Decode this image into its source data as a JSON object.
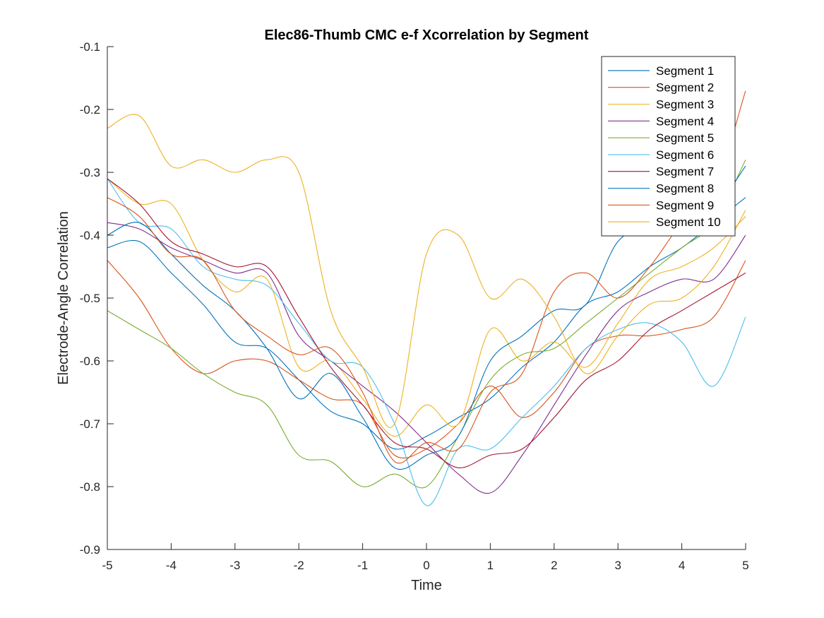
{
  "chart_data": {
    "type": "line",
    "title": "Elec86-Thumb CMC e-f Xcorrelation by Segment",
    "xlabel": "Time",
    "ylabel": "Electrode-Angle Correlation",
    "xlim": [
      -5,
      5
    ],
    "ylim": [
      -0.9,
      -0.1
    ],
    "xticks": [
      -5,
      -4,
      -3,
      -2,
      -1,
      0,
      1,
      2,
      3,
      4,
      5
    ],
    "xtick_labels": [
      "-5",
      "-4",
      "-3",
      "-2",
      "-1",
      "0",
      "1",
      "2",
      "3",
      "4",
      "5"
    ],
    "yticks": [
      -0.9,
      -0.8,
      -0.7,
      -0.6,
      -0.5,
      -0.4,
      -0.3,
      -0.2,
      -0.1
    ],
    "ytick_labels": [
      "-0.9",
      "-0.8",
      "-0.7",
      "-0.6",
      "-0.5",
      "-0.4",
      "-0.3",
      "-0.2",
      "-0.1"
    ],
    "grid": false,
    "legend_position": "top-right",
    "x": [
      -5,
      -4.5,
      -4,
      -3.5,
      -3,
      -2.5,
      -2,
      -1.5,
      -1,
      -0.5,
      0,
      0.5,
      1,
      1.5,
      2,
      2.5,
      3,
      3.5,
      4,
      4.5,
      5
    ],
    "series": [
      {
        "name": "Segment 1",
        "color": "#0072BD",
        "values": [
          -0.42,
          -0.41,
          -0.46,
          -0.51,
          -0.57,
          -0.58,
          -0.63,
          -0.68,
          -0.7,
          -0.74,
          -0.72,
          -0.69,
          -0.66,
          -0.61,
          -0.57,
          -0.51,
          -0.49,
          -0.45,
          -0.42,
          -0.38,
          -0.34
        ]
      },
      {
        "name": "Segment 2",
        "color": "#D95319",
        "values": [
          -0.44,
          -0.5,
          -0.58,
          -0.62,
          -0.6,
          -0.6,
          -0.63,
          -0.66,
          -0.67,
          -0.75,
          -0.74,
          -0.7,
          -0.64,
          -0.69,
          -0.65,
          -0.58,
          -0.56,
          -0.56,
          -0.55,
          -0.53,
          -0.44
        ]
      },
      {
        "name": "Segment 3",
        "color": "#EDB120",
        "values": [
          -0.31,
          -0.35,
          -0.35,
          -0.44,
          -0.49,
          -0.47,
          -0.61,
          -0.6,
          -0.66,
          -0.72,
          -0.67,
          -0.7,
          -0.55,
          -0.6,
          -0.57,
          -0.61,
          -0.54,
          -0.47,
          -0.45,
          -0.42,
          -0.37
        ]
      },
      {
        "name": "Segment 4",
        "color": "#7E2F8E",
        "values": [
          -0.38,
          -0.39,
          -0.42,
          -0.44,
          -0.46,
          -0.46,
          -0.56,
          -0.6,
          -0.64,
          -0.68,
          -0.73,
          -0.78,
          -0.81,
          -0.75,
          -0.67,
          -0.59,
          -0.52,
          -0.49,
          -0.47,
          -0.47,
          -0.4
        ]
      },
      {
        "name": "Segment 5",
        "color": "#77AC30",
        "values": [
          -0.52,
          -0.55,
          -0.58,
          -0.62,
          -0.65,
          -0.67,
          -0.75,
          -0.76,
          -0.8,
          -0.78,
          -0.8,
          -0.72,
          -0.63,
          -0.59,
          -0.58,
          -0.54,
          -0.5,
          -0.46,
          -0.42,
          -0.38,
          -0.28
        ]
      },
      {
        "name": "Segment 6",
        "color": "#4DBEEE",
        "values": [
          -0.31,
          -0.38,
          -0.39,
          -0.45,
          -0.47,
          -0.48,
          -0.54,
          -0.6,
          -0.61,
          -0.7,
          -0.83,
          -0.74,
          -0.74,
          -0.69,
          -0.64,
          -0.58,
          -0.55,
          -0.54,
          -0.57,
          -0.64,
          -0.53
        ]
      },
      {
        "name": "Segment 7",
        "color": "#A2142F",
        "values": [
          -0.31,
          -0.35,
          -0.41,
          -0.43,
          -0.45,
          -0.45,
          -0.53,
          -0.61,
          -0.67,
          -0.73,
          -0.74,
          -0.77,
          -0.75,
          -0.74,
          -0.69,
          -0.63,
          -0.6,
          -0.55,
          -0.52,
          -0.49,
          -0.46
        ]
      },
      {
        "name": "Segment 8",
        "color": "#0072BD",
        "values": [
          -0.4,
          -0.38,
          -0.43,
          -0.48,
          -0.52,
          -0.58,
          -0.66,
          -0.62,
          -0.69,
          -0.77,
          -0.75,
          -0.72,
          -0.6,
          -0.56,
          -0.52,
          -0.51,
          -0.41,
          -0.39,
          -0.39,
          -0.36,
          -0.29
        ]
      },
      {
        "name": "Segment 9",
        "color": "#D95319",
        "values": [
          -0.34,
          -0.37,
          -0.43,
          -0.44,
          -0.52,
          -0.56,
          -0.59,
          -0.58,
          -0.65,
          -0.76,
          -0.73,
          -0.74,
          -0.65,
          -0.62,
          -0.49,
          -0.46,
          -0.5,
          -0.45,
          -0.38,
          -0.33,
          -0.17
        ]
      },
      {
        "name": "Segment 10",
        "color": "#EDB120",
        "values": [
          -0.23,
          -0.21,
          -0.29,
          -0.28,
          -0.3,
          -0.28,
          -0.3,
          -0.52,
          -0.61,
          -0.7,
          -0.43,
          -0.4,
          -0.5,
          -0.47,
          -0.53,
          -0.62,
          -0.56,
          -0.51,
          -0.5,
          -0.45,
          -0.36
        ]
      }
    ]
  }
}
